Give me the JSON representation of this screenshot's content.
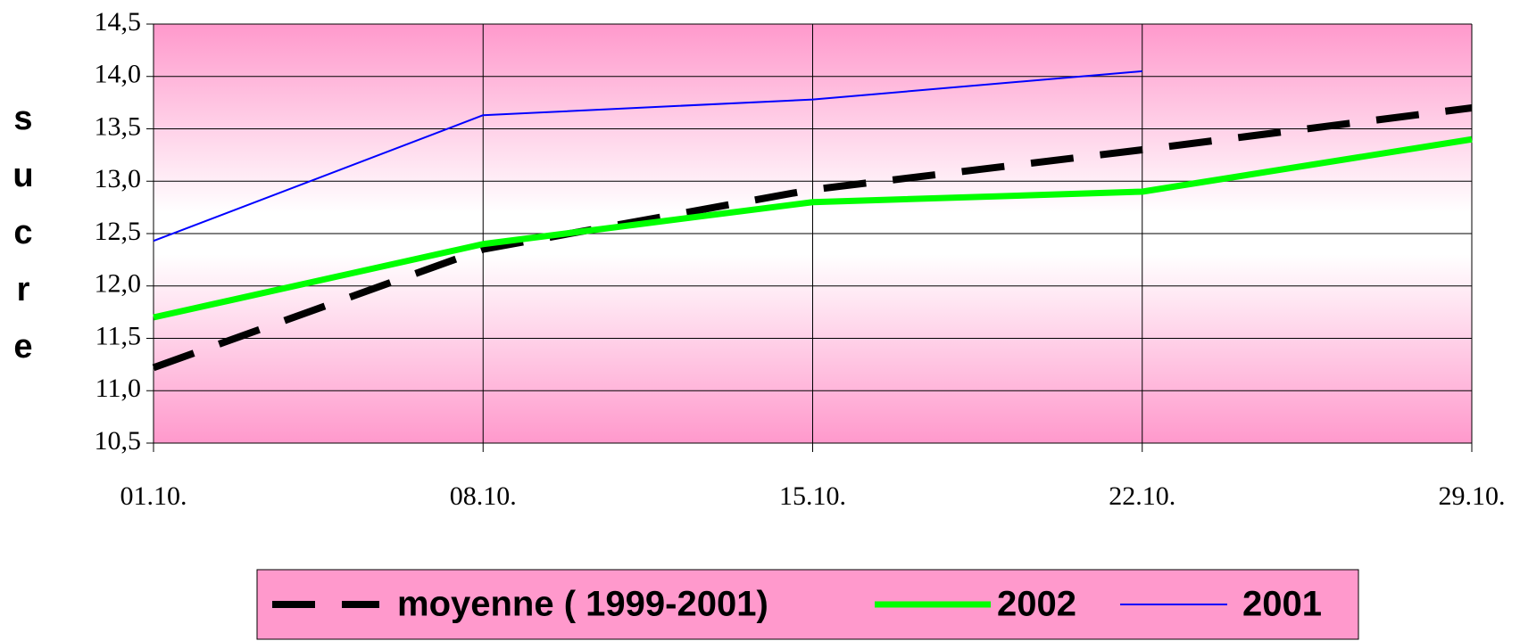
{
  "chart_data": {
    "type": "line",
    "y_label": "sucre",
    "categories": [
      "01.10.",
      "08.10.",
      "15.10.",
      "22.10.",
      "29.10."
    ],
    "series": [
      {
        "name": "moyenne ( 1999-2001)",
        "color": "#000000",
        "values": [
          11.22,
          12.35,
          12.92,
          13.3,
          13.7
        ]
      },
      {
        "name": "2002",
        "color": "#00ff00",
        "values": [
          11.7,
          12.4,
          12.8,
          12.9,
          13.4
        ]
      },
      {
        "name": "2001",
        "color": "#0000ff",
        "values": [
          12.43,
          13.63,
          13.78,
          14.05,
          null
        ]
      }
    ],
    "ylim": [
      10.5,
      14.5
    ],
    "yticks": [
      {
        "value": 10.5,
        "label": "10,5"
      },
      {
        "value": 11,
        "label": "11,0"
      },
      {
        "value": 11.5,
        "label": "11,5"
      },
      {
        "value": 12,
        "label": "12,0"
      },
      {
        "value": 12.5,
        "label": "12,5"
      },
      {
        "value": 13,
        "label": "13,0"
      },
      {
        "value": 13.5,
        "label": "13,5"
      },
      {
        "value": 14,
        "label": "14,0"
      },
      {
        "value": 14.5,
        "label": "14,5"
      }
    ],
    "grid": true,
    "legend": "bottom"
  }
}
